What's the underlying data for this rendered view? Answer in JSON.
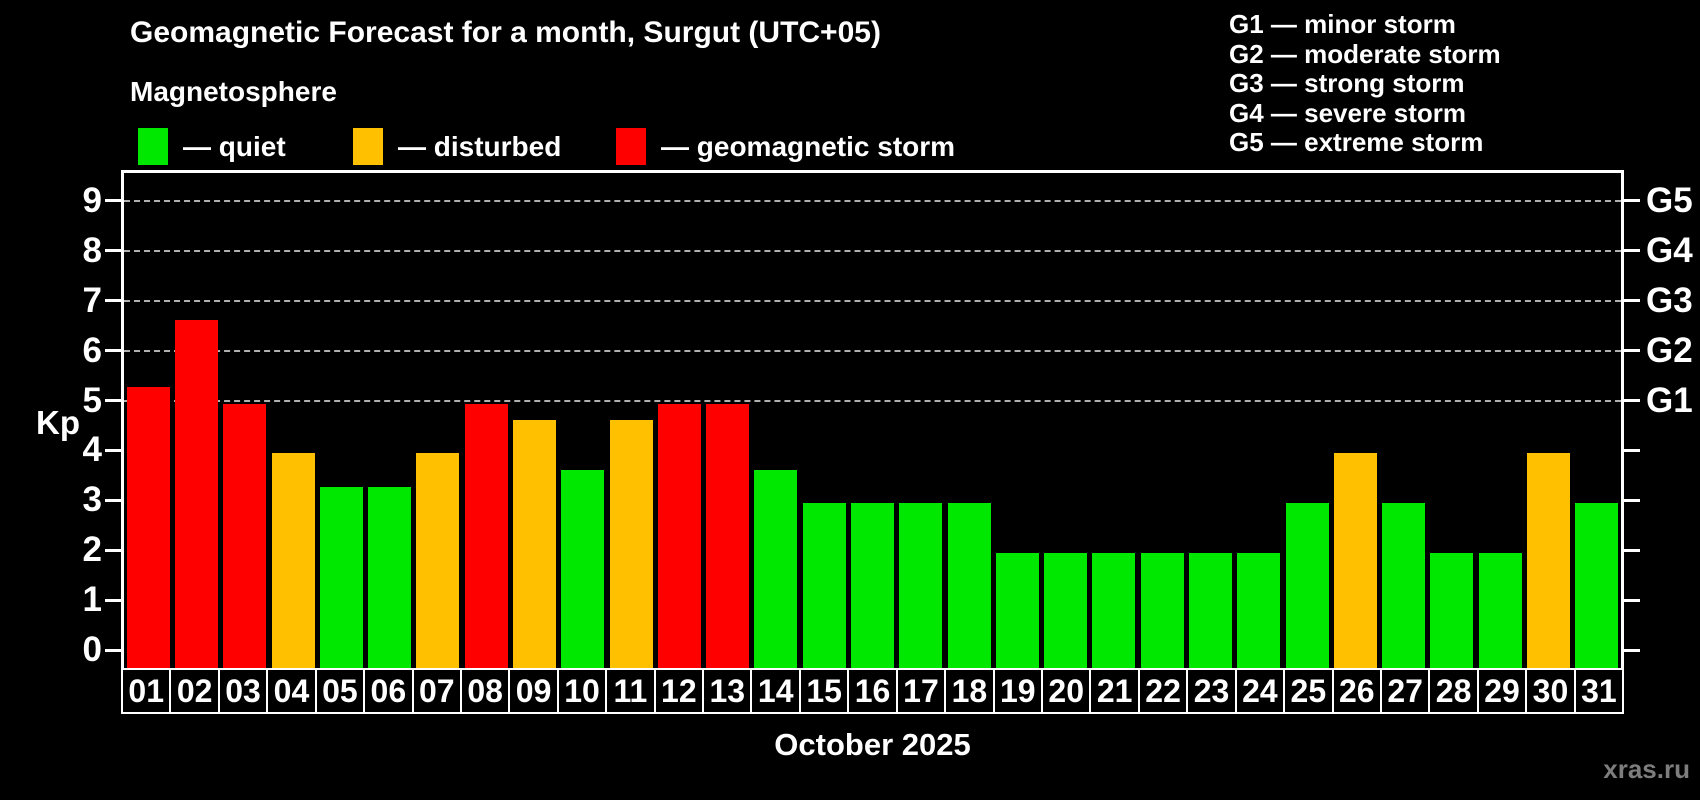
{
  "title": "Geomagnetic Forecast for a month, Surgut (UTC+05)",
  "subtitle": "Magnetosphere",
  "legend": {
    "items": [
      {
        "key": "quiet",
        "label": "— quiet",
        "color": "#00e800"
      },
      {
        "key": "disturbed",
        "label": "— disturbed",
        "color": "#ffc000"
      },
      {
        "key": "storm",
        "label": "— geomagnetic storm",
        "color": "#ff0000"
      }
    ]
  },
  "g_legend": {
    "items": [
      "G1 — minor storm",
      "G2 — moderate storm",
      "G3 — strong storm",
      "G4 — severe storm",
      "G5 — extreme storm"
    ]
  },
  "watermark": "xras.ru",
  "chart_data": {
    "type": "bar",
    "title": "Geomagnetic Forecast for a month, Surgut (UTC+05)",
    "xlabel": "October 2025",
    "ylabel": "Kp",
    "ylim": [
      0,
      9
    ],
    "yticks": [
      0,
      1,
      2,
      3,
      4,
      5,
      6,
      7,
      8,
      9
    ],
    "gridlines_at": [
      5,
      6,
      7,
      8,
      9
    ],
    "grid": "dashed horizontal at G-storm levels only",
    "legend_position": "top",
    "right_axis_labels": [
      {
        "label": "G1",
        "kp": 5
      },
      {
        "label": "G2",
        "kp": 6
      },
      {
        "label": "G3",
        "kp": 7
      },
      {
        "label": "G4",
        "kp": 8
      },
      {
        "label": "G5",
        "kp": 9
      }
    ],
    "categories": [
      "01",
      "02",
      "03",
      "04",
      "05",
      "06",
      "07",
      "08",
      "09",
      "10",
      "11",
      "12",
      "13",
      "14",
      "15",
      "16",
      "17",
      "18",
      "19",
      "20",
      "21",
      "22",
      "23",
      "24",
      "25",
      "26",
      "27",
      "28",
      "29",
      "30",
      "31"
    ],
    "values": [
      5.33,
      6.67,
      5,
      4,
      3.33,
      3.33,
      4,
      5,
      4.67,
      3.67,
      4.67,
      5,
      5,
      3.67,
      3,
      3,
      3,
      3,
      2,
      2,
      2,
      2,
      2,
      2,
      3,
      4,
      3,
      2,
      2,
      4,
      3
    ],
    "statuses": [
      "storm",
      "storm",
      "storm",
      "disturbed",
      "quiet",
      "quiet",
      "disturbed",
      "storm",
      "disturbed",
      "quiet",
      "disturbed",
      "storm",
      "storm",
      "quiet",
      "quiet",
      "quiet",
      "quiet",
      "quiet",
      "quiet",
      "quiet",
      "quiet",
      "quiet",
      "quiet",
      "quiet",
      "quiet",
      "disturbed",
      "quiet",
      "quiet",
      "quiet",
      "disturbed",
      "quiet"
    ],
    "status_colors": {
      "quiet": "#00e800",
      "disturbed": "#ffc000",
      "storm": "#ff0000"
    }
  }
}
